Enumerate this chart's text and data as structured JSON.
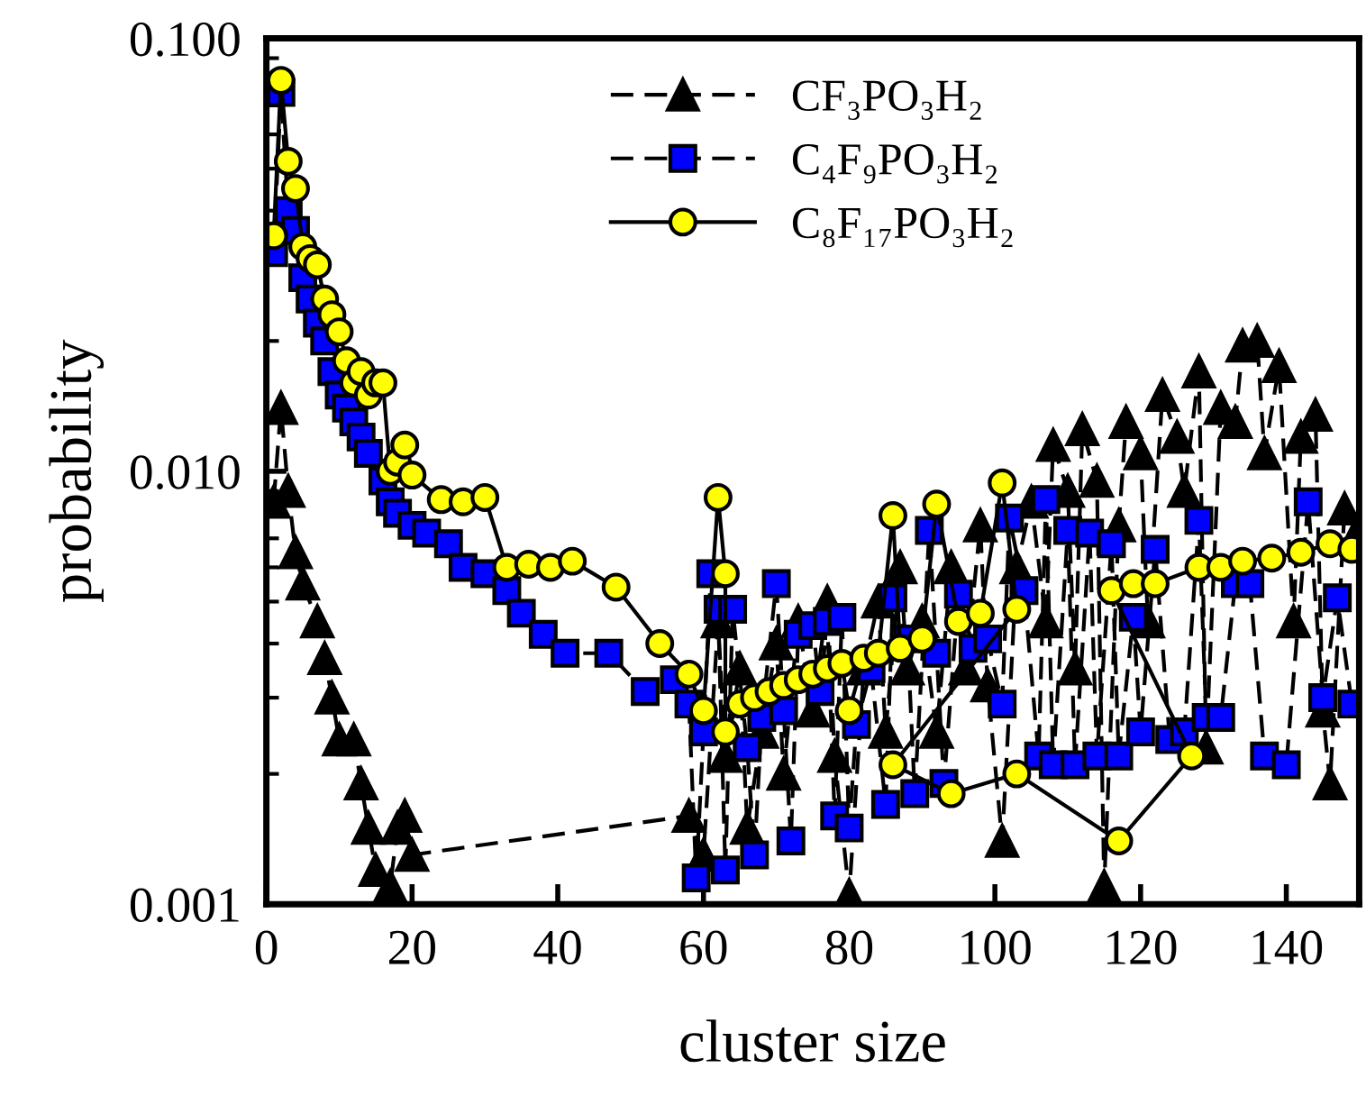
{
  "chart_data": {
    "type": "line",
    "xlabel": "cluster size",
    "ylabel": "probability",
    "log": "y",
    "xlim": [
      0,
      150
    ],
    "ylim": [
      0.001,
      0.1
    ],
    "xticks": [
      0,
      20,
      40,
      60,
      80,
      100,
      120,
      140
    ],
    "yticks": [
      {
        "value": 0.001,
        "label": "0.001"
      },
      {
        "value": 0.01,
        "label": "0.010"
      },
      {
        "value": 0.1,
        "label": "0.100"
      }
    ],
    "grid": false,
    "legend": "top",
    "series": [
      {
        "name": "CF₃PO₃H₂",
        "color": "#000000",
        "marker": "triangle",
        "line_style": "dashed",
        "x": [
          1,
          2,
          3,
          4,
          5,
          7,
          8,
          9,
          10,
          12,
          13,
          14,
          15,
          17,
          18,
          19,
          20,
          58,
          60,
          62,
          63,
          65,
          66,
          68,
          70,
          71,
          73,
          75,
          77,
          78,
          80,
          82,
          84,
          85,
          87,
          88,
          90,
          92,
          94,
          96,
          98,
          99,
          101,
          103,
          105,
          107,
          108,
          110,
          111,
          112,
          114,
          115,
          117,
          118,
          120,
          121,
          123,
          125,
          126,
          128,
          129,
          131,
          133,
          134,
          136,
          137,
          139,
          141,
          142,
          144,
          145,
          146,
          148,
          150
        ],
        "values": [
          0.0085,
          0.014,
          0.009,
          0.0065,
          0.0055,
          0.0045,
          0.0037,
          0.003,
          0.0024,
          0.0024,
          0.0019,
          0.0015,
          0.0012,
          0.0011,
          0.0015,
          0.0016,
          0.0013,
          0.0016,
          0.0013,
          0.0045,
          0.0022,
          0.0035,
          0.0015,
          0.0025,
          0.004,
          0.002,
          0.0045,
          0.0028,
          0.005,
          0.0022,
          0.00105,
          0.0035,
          0.005,
          0.0025,
          0.006,
          0.0035,
          0.0045,
          0.0025,
          0.006,
          0.0035,
          0.0075,
          0.0032,
          0.0014,
          0.006,
          0.0085,
          0.0045,
          0.0115,
          0.009,
          0.0035,
          0.0125,
          0.0095,
          0.0011,
          0.0075,
          0.013,
          0.011,
          0.0045,
          0.015,
          0.012,
          0.009,
          0.017,
          0.0023,
          0.014,
          0.013,
          0.0195,
          0.02,
          0.011,
          0.0175,
          0.0045,
          0.012,
          0.0135,
          0.0028,
          0.0019,
          0.0082,
          0.0074
        ]
      },
      {
        "name": "C₄F₉PO₃H₂",
        "color": "#0000ff",
        "marker": "square",
        "line_style": "dashed",
        "x": [
          1,
          2,
          3,
          4,
          5,
          6,
          7,
          8,
          9,
          10,
          11,
          12,
          13,
          14,
          16,
          17,
          18,
          20,
          22,
          25,
          27,
          30,
          33,
          35,
          38,
          41,
          47,
          52,
          56,
          58,
          59,
          60,
          61,
          62,
          63,
          64,
          66,
          67,
          68,
          70,
          71,
          72,
          73,
          75,
          76,
          77,
          78,
          79,
          80,
          81,
          83,
          85,
          86,
          88,
          89,
          91,
          92,
          93,
          95,
          97,
          99,
          101,
          102,
          104,
          106,
          107,
          108,
          110,
          111,
          113,
          114,
          116,
          117,
          119,
          120,
          122,
          124,
          126,
          128,
          129,
          131,
          133,
          135,
          137,
          140,
          143,
          145,
          147,
          149
        ],
        "values": [
          0.032,
          0.075,
          0.04,
          0.036,
          0.028,
          0.025,
          0.022,
          0.02,
          0.017,
          0.015,
          0.014,
          0.013,
          0.012,
          0.011,
          0.0095,
          0.0085,
          0.008,
          0.0075,
          0.0072,
          0.0068,
          0.006,
          0.0058,
          0.0053,
          0.0047,
          0.0042,
          0.0038,
          0.0038,
          0.0031,
          0.0033,
          0.0029,
          0.00115,
          0.0025,
          0.0058,
          0.0048,
          0.0012,
          0.0048,
          0.0023,
          0.0013,
          0.0027,
          0.0055,
          0.0028,
          0.0014,
          0.0042,
          0.0044,
          0.0031,
          0.0045,
          0.0016,
          0.0046,
          0.0015,
          0.0026,
          0.0035,
          0.0017,
          0.0051,
          0.0041,
          0.0018,
          0.0073,
          0.0038,
          0.0019,
          0.0052,
          0.0039,
          0.0041,
          0.0029,
          0.0078,
          0.0053,
          0.0022,
          0.0086,
          0.0021,
          0.0073,
          0.0021,
          0.0072,
          0.0022,
          0.0068,
          0.0022,
          0.0046,
          0.0025,
          0.0066,
          0.0024,
          0.0025,
          0.0077,
          0.0027,
          0.0027,
          0.0055,
          0.0055,
          0.0022,
          0.0021,
          0.0085,
          0.003,
          0.0051,
          0.0029
        ]
      },
      {
        "name": "C₈F₁₇PO₃H₂",
        "color": "#ffff00",
        "marker": "circle",
        "line_style": "solid",
        "x": [
          1,
          2,
          3,
          4,
          5,
          6,
          7,
          8,
          9,
          10,
          11,
          12,
          13,
          14,
          15,
          16,
          17,
          18,
          19,
          20,
          24,
          27,
          30,
          33,
          36,
          39,
          42,
          48,
          54,
          58,
          60,
          62,
          63,
          63,
          65,
          67,
          69,
          71,
          73,
          75,
          77,
          79,
          80,
          82,
          84,
          86,
          87,
          90,
          92,
          95,
          98,
          101,
          103,
          86,
          94,
          103,
          117,
          127,
          116,
          119,
          122,
          128,
          131,
          134,
          138,
          142,
          146,
          149
        ],
        "values": [
          0.035,
          0.08,
          0.052,
          0.045,
          0.033,
          0.031,
          0.03,
          0.025,
          0.023,
          0.021,
          0.018,
          0.016,
          0.017,
          0.015,
          0.016,
          0.016,
          0.01,
          0.0105,
          0.0115,
          0.0098,
          0.0086,
          0.0085,
          0.0087,
          0.006,
          0.0061,
          0.006,
          0.0062,
          0.0054,
          0.004,
          0.0034,
          0.0028,
          0.0087,
          0.0058,
          0.0025,
          0.0029,
          0.003,
          0.0031,
          0.0032,
          0.0033,
          0.0034,
          0.0035,
          0.0036,
          0.0028,
          0.0037,
          0.0038,
          0.0079,
          0.0039,
          0.0041,
          0.0084,
          0.0045,
          0.0047,
          0.0094,
          0.0048,
          0.0021,
          0.0018,
          0.002,
          0.0014,
          0.0022,
          0.0053,
          0.0055,
          0.0055,
          0.006,
          0.006,
          0.0062,
          0.0063,
          0.0065,
          0.0068,
          0.0066
        ]
      }
    ]
  }
}
